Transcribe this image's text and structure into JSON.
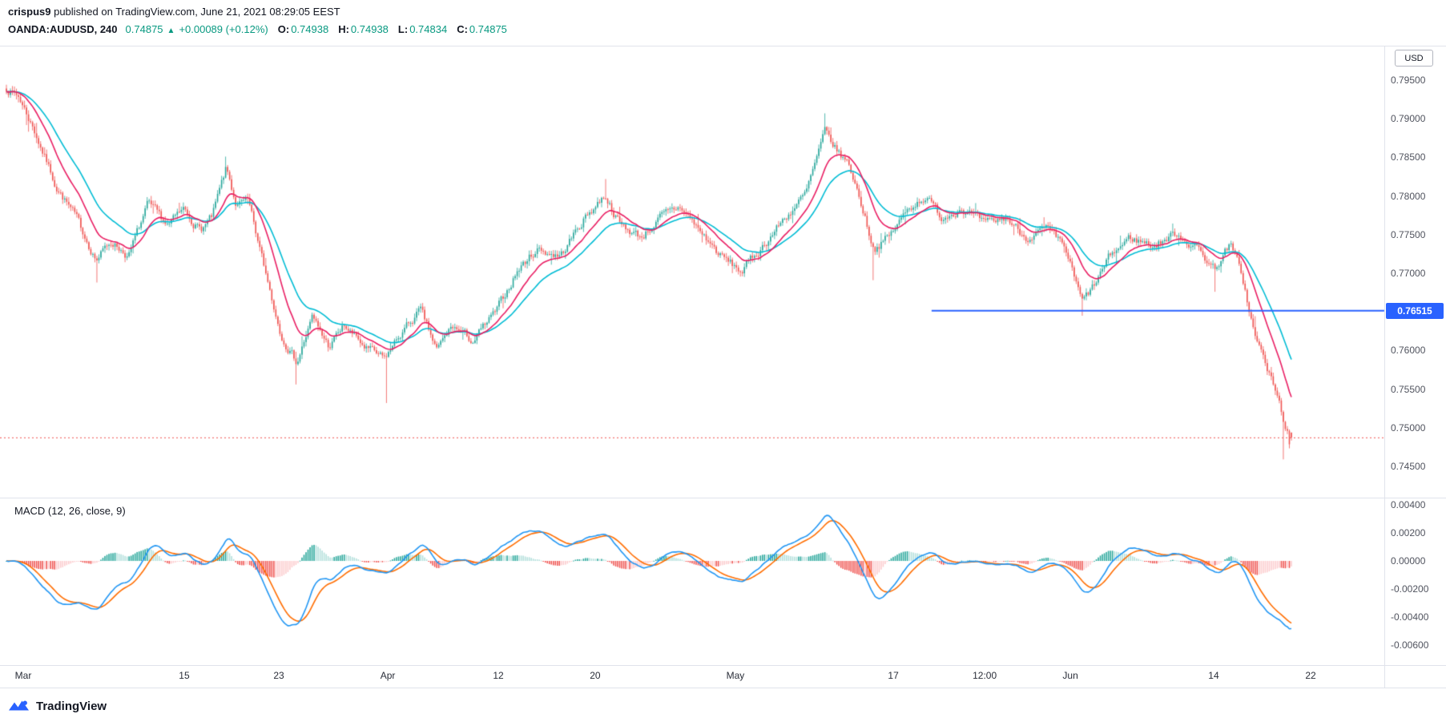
{
  "header": {
    "username": "crispus9",
    "published_text": " published on TradingView.com, June 21, 2021 08:29:05 EEST"
  },
  "symbol_bar": {
    "symbol": "OANDA:AUDUSD, 240",
    "last_price": "0.74875",
    "direction_arrow": "▲",
    "change_text": "+0.00089 (+0.12%)",
    "open_label": "O:",
    "open": "0.74938",
    "high_label": "H:",
    "high": "0.74938",
    "low_label": "L:",
    "low": "0.74834",
    "close_label": "C:",
    "close": "0.74875"
  },
  "axis": {
    "currency_button": "USD"
  },
  "footer": {
    "brand": "TradingView"
  },
  "colors": {
    "up_text": "#089981",
    "accent_blue": "#2962ff",
    "border": "#e0e3eb",
    "axis_text": "#50535e"
  },
  "chart_data": {
    "type": "candlestick",
    "title": "OANDA:AUDUSD, 240 with MACD (12, 26, close, 9)",
    "price_panel": {
      "ylim": [
        0.7411,
        0.7995
      ],
      "y_tick_labels": [
        "0.79500",
        "0.79000",
        "0.78500",
        "0.78000",
        "0.77500",
        "0.77000",
        "0.76500",
        "0.76000",
        "0.75500",
        "0.75000",
        "0.74500"
      ],
      "up_color": "#26a69a",
      "down_color": "#ef5350",
      "num_candles": 640,
      "prev_close": 0.74786,
      "close_keyframes": [
        [
          0.0,
          0.794
        ],
        [
          0.01,
          0.7928
        ],
        [
          0.023,
          0.788
        ],
        [
          0.039,
          0.7812
        ],
        [
          0.054,
          0.7772
        ],
        [
          0.07,
          0.7718
        ],
        [
          0.082,
          0.7742
        ],
        [
          0.095,
          0.7722
        ],
        [
          0.11,
          0.7788
        ],
        [
          0.126,
          0.7762
        ],
        [
          0.138,
          0.7782
        ],
        [
          0.151,
          0.7756
        ],
        [
          0.16,
          0.7772
        ],
        [
          0.171,
          0.7835
        ],
        [
          0.179,
          0.7788
        ],
        [
          0.188,
          0.7792
        ],
        [
          0.201,
          0.7705
        ],
        [
          0.213,
          0.7625
        ],
        [
          0.226,
          0.7585
        ],
        [
          0.238,
          0.7642
        ],
        [
          0.251,
          0.7605
        ],
        [
          0.263,
          0.7632
        ],
        [
          0.279,
          0.7604
        ],
        [
          0.294,
          0.7588
        ],
        [
          0.307,
          0.7622
        ],
        [
          0.322,
          0.7652
        ],
        [
          0.335,
          0.76
        ],
        [
          0.347,
          0.7632
        ],
        [
          0.363,
          0.7612
        ],
        [
          0.382,
          0.7652
        ],
        [
          0.397,
          0.7702
        ],
        [
          0.413,
          0.7732
        ],
        [
          0.431,
          0.7722
        ],
        [
          0.45,
          0.7772
        ],
        [
          0.466,
          0.7802
        ],
        [
          0.478,
          0.7762
        ],
        [
          0.494,
          0.7747
        ],
        [
          0.509,
          0.7772
        ],
        [
          0.525,
          0.7786
        ],
        [
          0.541,
          0.7752
        ],
        [
          0.556,
          0.7722
        ],
        [
          0.572,
          0.7702
        ],
        [
          0.587,
          0.7732
        ],
        [
          0.606,
          0.7772
        ],
        [
          0.622,
          0.7802
        ],
        [
          0.637,
          0.7882
        ],
        [
          0.647,
          0.7857
        ],
        [
          0.656,
          0.784
        ],
        [
          0.665,
          0.7792
        ],
        [
          0.675,
          0.7732
        ],
        [
          0.687,
          0.7747
        ],
        [
          0.703,
          0.7786
        ],
        [
          0.715,
          0.78
        ],
        [
          0.728,
          0.7772
        ],
        [
          0.743,
          0.7786
        ],
        [
          0.762,
          0.7762
        ],
        [
          0.778,
          0.7772
        ],
        [
          0.793,
          0.7747
        ],
        [
          0.809,
          0.7756
        ],
        [
          0.824,
          0.7732
        ],
        [
          0.837,
          0.7662
        ],
        [
          0.846,
          0.7682
        ],
        [
          0.859,
          0.7722
        ],
        [
          0.874,
          0.7746
        ],
        [
          0.893,
          0.7736
        ],
        [
          0.911,
          0.7752
        ],
        [
          0.927,
          0.7732
        ],
        [
          0.94,
          0.7706
        ],
        [
          0.952,
          0.7737
        ],
        [
          0.961,
          0.7702
        ],
        [
          0.971,
          0.7622
        ],
        [
          0.98,
          0.7582
        ],
        [
          0.989,
          0.754
        ],
        [
          0.996,
          0.75
        ],
        [
          1.0,
          0.7479
        ]
      ],
      "wick_events": [
        {
          "t": 0.07,
          "low": 0.7688
        },
        {
          "t": 0.171,
          "high": 0.7851
        },
        {
          "t": 0.226,
          "low": 0.7556
        },
        {
          "t": 0.296,
          "low": 0.7532
        },
        {
          "t": 0.466,
          "high": 0.7822
        },
        {
          "t": 0.637,
          "high": 0.7907
        },
        {
          "t": 0.675,
          "low": 0.7691
        },
        {
          "t": 0.838,
          "low": 0.7645
        },
        {
          "t": 0.94,
          "low": 0.7676
        },
        {
          "t": 0.993,
          "low": 0.7459
        }
      ],
      "ma_fast": {
        "period": 16,
        "color": "#e91e63"
      },
      "ma_slow": {
        "period": 32,
        "color": "#00bcd4"
      },
      "support_line": {
        "value": 0.76515,
        "label": "0.76515",
        "color": "#2962ff",
        "start_t": 0.72
      },
      "last_price_line": {
        "value": 0.74875,
        "color": "#ef5350"
      }
    },
    "macd_panel": {
      "label": "MACD (12, 26, close, 9)",
      "params": {
        "fast": 12,
        "slow": 26,
        "source": "close",
        "signal": 9
      },
      "ylim": [
        -0.0074,
        0.0045
      ],
      "y_tick_labels": [
        "0.00400",
        "0.00200",
        "0.00000",
        "-0.00200",
        "-0.00400",
        "-0.00600"
      ],
      "macd_color": "#2196f3",
      "signal_color": "#ff6d00",
      "hist_colors": {
        "pos_grow": "#26a69a",
        "pos_fall": "#b2dfdb",
        "neg_fall": "#ef5350",
        "neg_rise": "#fccbcd"
      }
    },
    "x_axis": {
      "ticks": [
        {
          "label": "Mar",
          "t": 0.0131
        },
        {
          "label": "15",
          "t": 0.1384
        },
        {
          "label": "23",
          "t": 0.212
        },
        {
          "label": "Apr",
          "t": 0.2968
        },
        {
          "label": "12",
          "t": 0.3828
        },
        {
          "label": "20",
          "t": 0.4582
        },
        {
          "label": "May",
          "t": 0.5673
        },
        {
          "label": "17",
          "t": 0.6902
        },
        {
          "label": "12:00",
          "t": 0.7613
        },
        {
          "label": "Jun",
          "t": 0.828
        },
        {
          "label": "14",
          "t": 0.9395
        },
        {
          "label": "22",
          "t": 1.015
        }
      ]
    }
  }
}
